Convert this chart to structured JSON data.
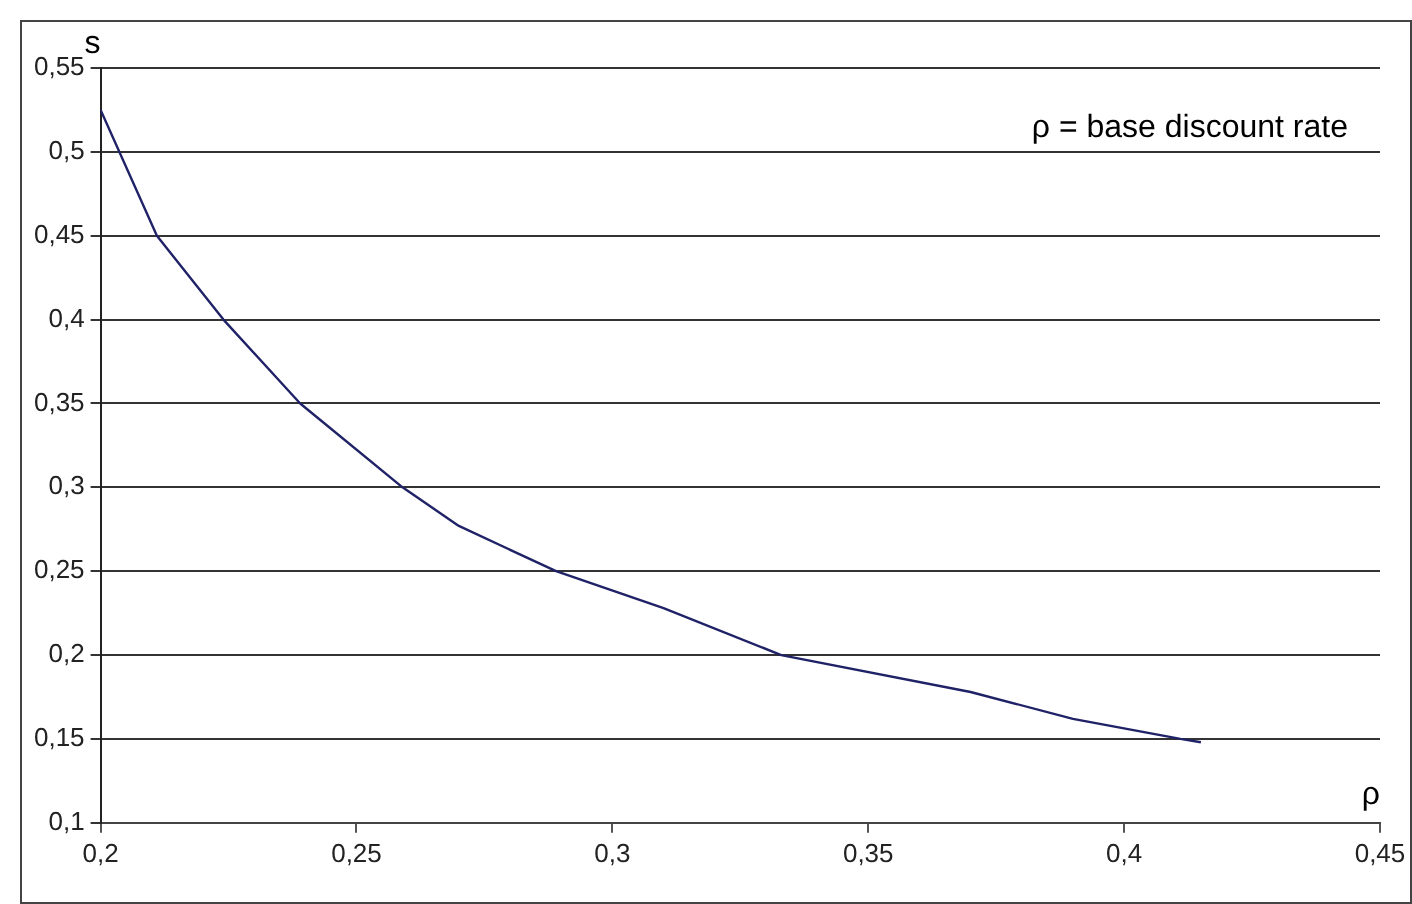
{
  "chart_data": {
    "type": "line",
    "xlabel": "ρ",
    "ylabel": "s",
    "annotations": [
      "ρ = base discount rate"
    ],
    "x": [
      0.2,
      0.211,
      0.224,
      0.239,
      0.259,
      0.27,
      0.289,
      0.31,
      0.333,
      0.37,
      0.39,
      0.411,
      0.415
    ],
    "series": [
      {
        "color": "#1f2266",
        "values": [
          0.525,
          0.45,
          0.4,
          0.35,
          0.3,
          0.277,
          0.25,
          0.228,
          0.2,
          0.178,
          0.162,
          0.15,
          0.148
        ]
      }
    ],
    "xlim": [
      0.2,
      0.45
    ],
    "xticks": [
      {
        "value": 0.2,
        "label": "0,2"
      },
      {
        "value": 0.25,
        "label": "0,25"
      },
      {
        "value": 0.3,
        "label": "0,3"
      },
      {
        "value": 0.35,
        "label": "0,35"
      },
      {
        "value": 0.4,
        "label": "0,4"
      },
      {
        "value": 0.45,
        "label": "0,45"
      }
    ],
    "ylim": [
      0.1,
      0.55
    ],
    "yticks": [
      {
        "value": 0.1,
        "label": "0,1"
      },
      {
        "value": 0.15,
        "label": "0,15"
      },
      {
        "value": 0.2,
        "label": "0,2"
      },
      {
        "value": 0.25,
        "label": "0,25"
      },
      {
        "value": 0.3,
        "label": "0,3"
      },
      {
        "value": 0.35,
        "label": "0,35"
      },
      {
        "value": 0.4,
        "label": "0,4"
      },
      {
        "value": 0.45,
        "label": "0,45"
      },
      {
        "value": 0.5,
        "label": "0,5"
      },
      {
        "value": 0.55,
        "label": "0,55"
      }
    ],
    "grid": "y",
    "legend": false,
    "marker": "none",
    "line_style": "solid"
  }
}
